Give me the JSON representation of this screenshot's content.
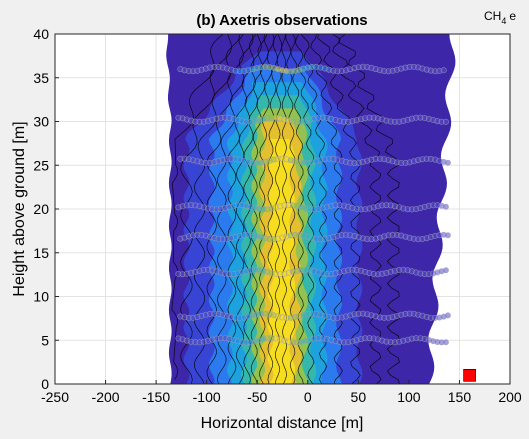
{
  "chart_data": {
    "type": "heatmap",
    "title": "(b) Axetris observations",
    "colorbar_title_main": "CH",
    "colorbar_title_sub": "4",
    "colorbar_title_tail": "e",
    "xlabel": "Horizontal distance [m]",
    "ylabel": "Height above ground [m]",
    "xlim": [
      -250,
      200
    ],
    "ylim": [
      0,
      40
    ],
    "xticks": [
      -250,
      -200,
      -150,
      -100,
      -50,
      0,
      50,
      100,
      150,
      200
    ],
    "yticks": [
      0,
      5,
      10,
      15,
      20,
      25,
      30,
      35,
      40
    ],
    "grid": true,
    "plume_center_x": -25,
    "observation_heights": [
      5,
      7.8,
      12.8,
      16.8,
      20.2,
      25.5,
      30.2,
      36
    ],
    "observation_x_range": [
      -128,
      140
    ],
    "source_marker": {
      "x": 160,
      "y": 1,
      "color": "#ff0000"
    },
    "colors": {
      "background": "#f0f0f0",
      "axes_background": "#ffffff",
      "low": "#3e26a8",
      "mid": "#21a6e3",
      "high": "#f9fb0e"
    }
  }
}
